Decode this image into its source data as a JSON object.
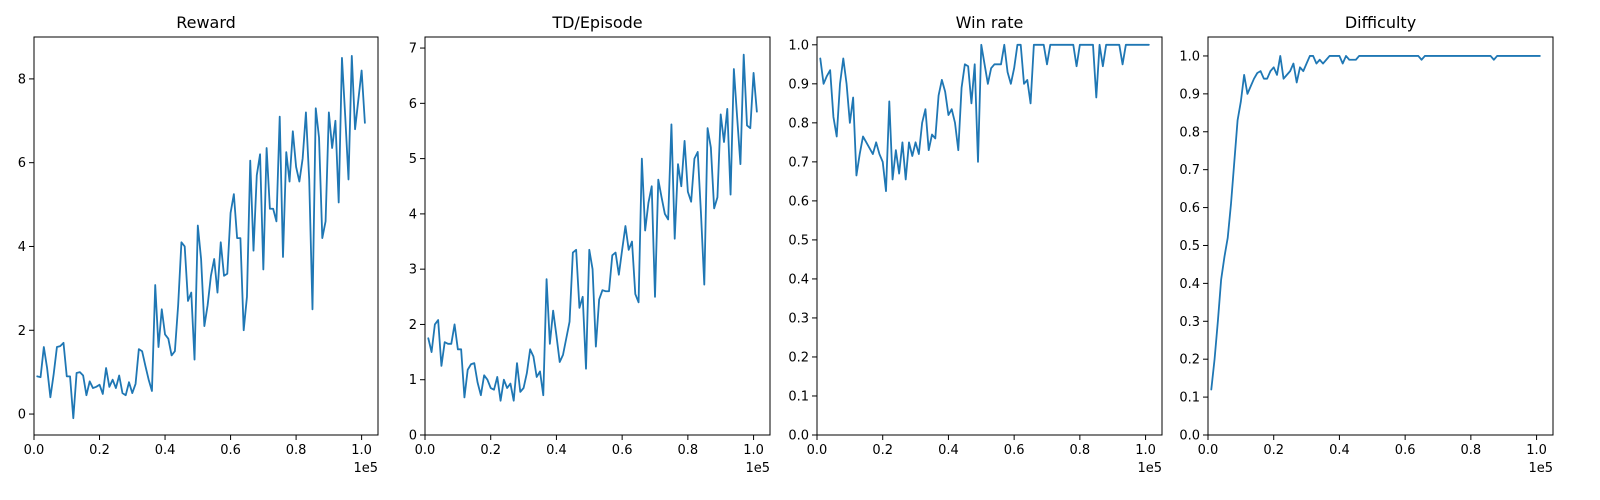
{
  "figure": {
    "line_color": "#1f77b4"
  },
  "chart_data": [
    {
      "type": "line",
      "title": "Reward",
      "xlim": [
        0,
        105000
      ],
      "ylim": [
        -0.5,
        9.0
      ],
      "x_ticks": [
        0,
        20000,
        40000,
        60000,
        80000,
        100000
      ],
      "x_tick_labels": [
        "0.0",
        "0.2",
        "0.4",
        "0.6",
        "0.8",
        "1.0"
      ],
      "x_offset_label": "1e5",
      "y_ticks": [
        0,
        2,
        4,
        6,
        8
      ],
      "y_tick_labels": [
        "0",
        "2",
        "4",
        "6",
        "8"
      ],
      "series": [
        {
          "x": [
            1000,
            2000,
            3000,
            4000,
            5000,
            6000,
            7000,
            8000,
            9000,
            10000,
            11000,
            12000,
            13000,
            14000,
            15000,
            16000,
            17000,
            18000,
            19000,
            20000,
            21000,
            22000,
            23000,
            24000,
            25000,
            26000,
            27000,
            28000,
            29000,
            30000,
            31000,
            32000,
            33000,
            34000,
            35000,
            36000,
            37000,
            38000,
            39000,
            40000,
            41000,
            42000,
            43000,
            44000,
            45000,
            46000,
            47000,
            48000,
            49000,
            50000,
            51000,
            52000,
            53000,
            54000,
            55000,
            56000,
            57000,
            58000,
            59000,
            60000,
            61000,
            62000,
            63000,
            64000,
            65000,
            66000,
            67000,
            68000,
            69000,
            70000,
            71000,
            72000,
            73000,
            74000,
            75000,
            76000,
            77000,
            78000,
            79000,
            80000,
            81000,
            82000,
            83000,
            84000,
            85000,
            86000,
            87000,
            88000,
            89000,
            90000,
            91000,
            92000,
            93000,
            94000,
            95000,
            96000,
            97000,
            98000,
            99000,
            100000,
            101000
          ],
          "y": [
            0.9,
            0.88,
            1.6,
            1.1,
            0.4,
            0.95,
            1.6,
            1.62,
            1.7,
            0.9,
            0.9,
            -0.1,
            0.98,
            1.0,
            0.92,
            0.45,
            0.78,
            0.62,
            0.65,
            0.7,
            0.48,
            1.1,
            0.65,
            0.82,
            0.62,
            0.92,
            0.5,
            0.45,
            0.76,
            0.5,
            0.72,
            1.55,
            1.5,
            1.15,
            0.82,
            0.55,
            3.08,
            1.6,
            2.5,
            1.9,
            1.8,
            1.4,
            1.5,
            2.6,
            4.1,
            4.0,
            2.7,
            2.9,
            1.3,
            4.5,
            3.7,
            2.1,
            2.6,
            3.3,
            3.7,
            2.9,
            4.1,
            3.3,
            3.35,
            4.8,
            5.25,
            4.2,
            4.2,
            2.0,
            2.8,
            6.05,
            3.9,
            5.7,
            6.2,
            3.45,
            6.35,
            4.9,
            4.9,
            4.6,
            7.1,
            3.75,
            6.25,
            5.55,
            6.75,
            5.9,
            5.55,
            6.1,
            7.2,
            5.6,
            2.5,
            7.3,
            6.6,
            4.2,
            4.6,
            7.2,
            6.35,
            7.0,
            5.05,
            8.5,
            7.1,
            5.6,
            8.55,
            6.8,
            7.5,
            8.2,
            6.95
          ]
        }
      ]
    },
    {
      "type": "line",
      "title": "TD/Episode",
      "xlim": [
        0,
        105000
      ],
      "ylim": [
        0,
        7.2
      ],
      "x_ticks": [
        0,
        20000,
        40000,
        60000,
        80000,
        100000
      ],
      "x_tick_labels": [
        "0.0",
        "0.2",
        "0.4",
        "0.6",
        "0.8",
        "1.0"
      ],
      "x_offset_label": "1e5",
      "y_ticks": [
        0,
        1,
        2,
        3,
        4,
        5,
        6,
        7
      ],
      "y_tick_labels": [
        "0",
        "1",
        "2",
        "3",
        "4",
        "5",
        "6",
        "7"
      ],
      "series": [
        {
          "x": [
            1000,
            2000,
            3000,
            4000,
            5000,
            6000,
            7000,
            8000,
            9000,
            10000,
            11000,
            12000,
            13000,
            14000,
            15000,
            16000,
            17000,
            18000,
            19000,
            20000,
            21000,
            22000,
            23000,
            24000,
            25000,
            26000,
            27000,
            28000,
            29000,
            30000,
            31000,
            32000,
            33000,
            34000,
            35000,
            36000,
            37000,
            38000,
            39000,
            40000,
            41000,
            42000,
            43000,
            44000,
            45000,
            46000,
            47000,
            48000,
            49000,
            50000,
            51000,
            52000,
            53000,
            54000,
            55000,
            56000,
            57000,
            58000,
            59000,
            60000,
            61000,
            62000,
            63000,
            64000,
            65000,
            66000,
            67000,
            68000,
            69000,
            70000,
            71000,
            72000,
            73000,
            74000,
            75000,
            76000,
            77000,
            78000,
            79000,
            80000,
            81000,
            82000,
            83000,
            84000,
            85000,
            86000,
            87000,
            88000,
            89000,
            90000,
            91000,
            92000,
            93000,
            94000,
            95000,
            96000,
            97000,
            98000,
            99000,
            100000,
            101000
          ],
          "y": [
            1.75,
            1.5,
            2.0,
            2.08,
            1.25,
            1.68,
            1.65,
            1.65,
            2.0,
            1.55,
            1.55,
            0.68,
            1.18,
            1.28,
            1.3,
            0.95,
            0.72,
            1.08,
            1.0,
            0.85,
            0.82,
            1.05,
            0.62,
            1.0,
            0.85,
            0.93,
            0.62,
            1.3,
            0.78,
            0.85,
            1.12,
            1.55,
            1.42,
            1.05,
            1.15,
            0.72,
            2.82,
            1.65,
            2.25,
            1.8,
            1.32,
            1.45,
            1.75,
            2.05,
            3.3,
            3.35,
            2.3,
            2.5,
            1.2,
            3.35,
            3.0,
            1.6,
            2.45,
            2.62,
            2.6,
            2.6,
            3.25,
            3.3,
            2.9,
            3.35,
            3.78,
            3.35,
            3.5,
            2.55,
            2.4,
            5.0,
            3.7,
            4.2,
            4.5,
            2.5,
            4.62,
            4.3,
            4.0,
            3.9,
            5.62,
            3.55,
            4.9,
            4.5,
            5.32,
            4.4,
            4.22,
            5.0,
            5.12,
            4.0,
            2.72,
            5.55,
            5.2,
            4.1,
            4.3,
            5.8,
            5.3,
            5.9,
            4.35,
            6.62,
            5.75,
            4.9,
            6.88,
            5.6,
            5.55,
            6.55,
            5.85
          ]
        }
      ]
    },
    {
      "type": "line",
      "title": "Win rate",
      "xlim": [
        0,
        105000
      ],
      "ylim": [
        0,
        1.02
      ],
      "x_ticks": [
        0,
        20000,
        40000,
        60000,
        80000,
        100000
      ],
      "x_tick_labels": [
        "0.0",
        "0.2",
        "0.4",
        "0.6",
        "0.8",
        "1.0"
      ],
      "x_offset_label": "1e5",
      "y_ticks": [
        0,
        0.1,
        0.2,
        0.3,
        0.4,
        0.5,
        0.6,
        0.7,
        0.8,
        0.9,
        1.0
      ],
      "y_tick_labels": [
        "0.0",
        "0.1",
        "0.2",
        "0.3",
        "0.4",
        "0.5",
        "0.6",
        "0.7",
        "0.8",
        "0.9",
        "1.0"
      ],
      "series": [
        {
          "x": [
            1000,
            2000,
            3000,
            4000,
            5000,
            6000,
            7000,
            8000,
            9000,
            10000,
            11000,
            12000,
            13000,
            14000,
            15000,
            16000,
            17000,
            18000,
            19000,
            20000,
            21000,
            22000,
            23000,
            24000,
            25000,
            26000,
            27000,
            28000,
            29000,
            30000,
            31000,
            32000,
            33000,
            34000,
            35000,
            36000,
            37000,
            38000,
            39000,
            40000,
            41000,
            42000,
            43000,
            44000,
            45000,
            46000,
            47000,
            48000,
            49000,
            50000,
            51000,
            52000,
            53000,
            54000,
            55000,
            56000,
            57000,
            58000,
            59000,
            60000,
            61000,
            62000,
            63000,
            64000,
            65000,
            66000,
            67000,
            68000,
            69000,
            70000,
            71000,
            72000,
            73000,
            74000,
            75000,
            76000,
            77000,
            78000,
            79000,
            80000,
            81000,
            82000,
            83000,
            84000,
            85000,
            86000,
            87000,
            88000,
            89000,
            90000,
            91000,
            92000,
            93000,
            94000,
            95000,
            96000,
            97000,
            98000,
            99000,
            100000,
            101000
          ],
          "y": [
            0.965,
            0.9,
            0.92,
            0.935,
            0.815,
            0.765,
            0.9,
            0.965,
            0.9,
            0.8,
            0.865,
            0.665,
            0.72,
            0.765,
            0.75,
            0.735,
            0.72,
            0.75,
            0.72,
            0.7,
            0.625,
            0.855,
            0.655,
            0.73,
            0.67,
            0.75,
            0.655,
            0.75,
            0.715,
            0.75,
            0.72,
            0.8,
            0.835,
            0.73,
            0.77,
            0.76,
            0.87,
            0.91,
            0.88,
            0.82,
            0.835,
            0.8,
            0.73,
            0.89,
            0.95,
            0.945,
            0.85,
            0.95,
            0.7,
            1.0,
            0.95,
            0.9,
            0.94,
            0.95,
            0.95,
            0.95,
            1.0,
            0.93,
            0.9,
            0.94,
            1.0,
            1.0,
            0.9,
            0.91,
            0.85,
            1.0,
            1.0,
            1.0,
            1.0,
            0.95,
            1.0,
            1.0,
            1.0,
            1.0,
            1.0,
            1.0,
            1.0,
            1.0,
            0.945,
            1.0,
            1.0,
            1.0,
            1.0,
            1.0,
            0.865,
            1.0,
            0.945,
            1.0,
            1.0,
            1.0,
            1.0,
            1.0,
            0.95,
            1.0,
            1.0,
            1.0,
            1.0,
            1.0,
            1.0,
            1.0,
            1.0
          ]
        }
      ]
    },
    {
      "type": "line",
      "title": "Difficulty",
      "xlim": [
        0,
        105000
      ],
      "ylim": [
        0,
        1.05
      ],
      "x_ticks": [
        0,
        20000,
        40000,
        60000,
        80000,
        100000
      ],
      "x_tick_labels": [
        "0.0",
        "0.2",
        "0.4",
        "0.6",
        "0.8",
        "1.0"
      ],
      "x_offset_label": "1e5",
      "y_ticks": [
        0,
        0.1,
        0.2,
        0.3,
        0.4,
        0.5,
        0.6,
        0.7,
        0.8,
        0.9,
        1.0
      ],
      "y_tick_labels": [
        "0.0",
        "0.1",
        "0.2",
        "0.3",
        "0.4",
        "0.5",
        "0.6",
        "0.7",
        "0.8",
        "0.9",
        "1.0"
      ],
      "series": [
        {
          "x": [
            1000,
            2000,
            3000,
            4000,
            5000,
            6000,
            7000,
            8000,
            9000,
            10000,
            11000,
            12000,
            13000,
            14000,
            15000,
            16000,
            17000,
            18000,
            19000,
            20000,
            21000,
            22000,
            23000,
            24000,
            25000,
            26000,
            27000,
            28000,
            29000,
            30000,
            31000,
            32000,
            33000,
            34000,
            35000,
            36000,
            37000,
            38000,
            39000,
            40000,
            41000,
            42000,
            43000,
            44000,
            45000,
            46000,
            47000,
            48000,
            49000,
            50000,
            51000,
            52000,
            53000,
            54000,
            55000,
            56000,
            57000,
            58000,
            59000,
            60000,
            61000,
            62000,
            63000,
            64000,
            65000,
            66000,
            67000,
            68000,
            69000,
            70000,
            71000,
            72000,
            73000,
            74000,
            75000,
            76000,
            77000,
            78000,
            79000,
            80000,
            81000,
            82000,
            83000,
            84000,
            85000,
            86000,
            87000,
            88000,
            89000,
            90000,
            91000,
            92000,
            93000,
            94000,
            95000,
            96000,
            97000,
            98000,
            99000,
            100000,
            101000
          ],
          "y": [
            0.12,
            0.2,
            0.3,
            0.41,
            0.47,
            0.52,
            0.61,
            0.72,
            0.83,
            0.88,
            0.95,
            0.9,
            0.92,
            0.94,
            0.955,
            0.96,
            0.94,
            0.94,
            0.96,
            0.97,
            0.95,
            1.0,
            0.94,
            0.95,
            0.96,
            0.98,
            0.93,
            0.97,
            0.96,
            0.98,
            1.0,
            1.0,
            0.98,
            0.99,
            0.98,
            0.99,
            1.0,
            1.0,
            1.0,
            1.0,
            0.98,
            1.0,
            0.99,
            0.99,
            0.99,
            1.0,
            1.0,
            1.0,
            1.0,
            1.0,
            1.0,
            1.0,
            1.0,
            1.0,
            1.0,
            1.0,
            1.0,
            1.0,
            1.0,
            1.0,
            1.0,
            1.0,
            1.0,
            1.0,
            0.99,
            1.0,
            1.0,
            1.0,
            1.0,
            1.0,
            1.0,
            1.0,
            1.0,
            1.0,
            1.0,
            1.0,
            1.0,
            1.0,
            1.0,
            1.0,
            1.0,
            1.0,
            1.0,
            1.0,
            1.0,
            1.0,
            0.99,
            1.0,
            1.0,
            1.0,
            1.0,
            1.0,
            1.0,
            1.0,
            1.0,
            1.0,
            1.0,
            1.0,
            1.0,
            1.0,
            1.0
          ]
        }
      ]
    }
  ]
}
